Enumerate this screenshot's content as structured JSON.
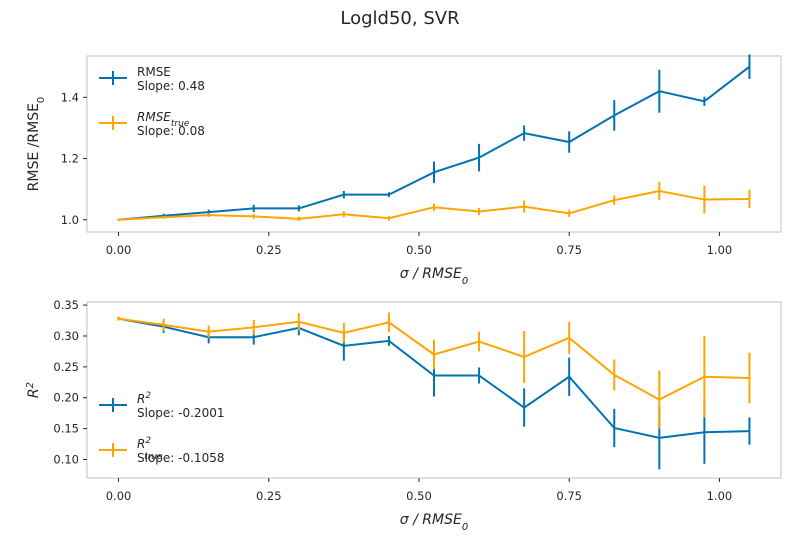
{
  "figure": {
    "suptitle": "Logld50, SVR"
  },
  "colors": {
    "blue": "#0173b2",
    "orange": "#ffa400",
    "frame": "#cccccc",
    "text": "#262626"
  },
  "chart_data": [
    {
      "type": "line",
      "title": "",
      "xlabel": "σ / RMSE0",
      "ylabel": "RMSE /RMSE0",
      "xlim": [
        -0.0525,
        1.1025
      ],
      "ylim": [
        0.96,
        1.535
      ],
      "xticks": [
        0.0,
        0.25,
        0.5,
        0.75,
        1.0
      ],
      "xtick_labels": [
        "0.00",
        "0.25",
        "0.50",
        "0.75",
        "1.00"
      ],
      "yticks": [
        1.0,
        1.2,
        1.4
      ],
      "ytick_labels": [
        "1.0",
        "1.2",
        "1.4"
      ],
      "grid": false,
      "legend_position": "upper-left",
      "x": [
        0.0,
        0.075,
        0.15,
        0.225,
        0.3,
        0.375,
        0.45,
        0.525,
        0.6,
        0.675,
        0.75,
        0.825,
        0.9,
        0.975,
        1.05
      ],
      "series": [
        {
          "name": "RMSE",
          "legend_sub": "",
          "slope_label": "Slope: 0.48",
          "color": "#0173b2",
          "values": [
            1.0,
            1.013,
            1.025,
            1.037,
            1.037,
            1.082,
            1.082,
            1.155,
            1.203,
            1.283,
            1.254,
            1.341,
            1.42,
            1.387,
            1.5
          ],
          "errors": [
            0.003,
            0.007,
            0.008,
            0.012,
            0.01,
            0.012,
            0.008,
            0.035,
            0.045,
            0.025,
            0.035,
            0.05,
            0.07,
            0.015,
            0.04
          ]
        },
        {
          "name": "RMSE",
          "legend_sub": "true",
          "slope_label": "Slope: 0.08",
          "color": "#ffa400",
          "values": [
            1.0,
            1.008,
            1.015,
            1.011,
            1.003,
            1.018,
            1.005,
            1.041,
            1.027,
            1.043,
            1.021,
            1.064,
            1.094,
            1.066,
            1.068
          ],
          "errors": [
            0.003,
            0.005,
            0.006,
            0.008,
            0.007,
            0.01,
            0.008,
            0.012,
            0.012,
            0.02,
            0.012,
            0.015,
            0.03,
            0.045,
            0.03
          ]
        }
      ]
    },
    {
      "type": "line",
      "title": "",
      "xlabel": "σ / RMSE0",
      "ylabel": "R2",
      "xlim": [
        -0.0525,
        1.1025
      ],
      "ylim": [
        0.07,
        0.355
      ],
      "xticks": [
        0.0,
        0.25,
        0.5,
        0.75,
        1.0
      ],
      "xtick_labels": [
        "0.00",
        "0.25",
        "0.50",
        "0.75",
        "1.00"
      ],
      "yticks": [
        0.1,
        0.15,
        0.2,
        0.25,
        0.3,
        0.35
      ],
      "ytick_labels": [
        "0.10",
        "0.15",
        "0.20",
        "0.25",
        "0.30",
        "0.35"
      ],
      "grid": false,
      "legend_position": "lower-left",
      "x": [
        0.0,
        0.075,
        0.15,
        0.225,
        0.3,
        0.375,
        0.45,
        0.525,
        0.6,
        0.675,
        0.75,
        0.825,
        0.9,
        0.975,
        1.05
      ],
      "series": [
        {
          "name": "R",
          "legend_sub": "",
          "slope_label": "Slope: -0.2001",
          "color": "#0173b2",
          "values": [
            0.328,
            0.315,
            0.298,
            0.298,
            0.313,
            0.284,
            0.292,
            0.236,
            0.236,
            0.184,
            0.234,
            0.151,
            0.135,
            0.144,
            0.146
          ],
          "errors": [
            0.003,
            0.01,
            0.01,
            0.012,
            0.012,
            0.024,
            0.008,
            0.034,
            0.013,
            0.031,
            0.031,
            0.031,
            0.051,
            0.051,
            0.022
          ]
        },
        {
          "name": "R",
          "legend_sub": "true",
          "slope_label": "Slope: -0.1058",
          "color": "#ffa400",
          "values": [
            0.328,
            0.318,
            0.307,
            0.314,
            0.323,
            0.305,
            0.322,
            0.27,
            0.291,
            0.266,
            0.297,
            0.237,
            0.197,
            0.234,
            0.232
          ],
          "errors": [
            0.003,
            0.01,
            0.01,
            0.012,
            0.014,
            0.016,
            0.016,
            0.024,
            0.016,
            0.042,
            0.026,
            0.025,
            0.047,
            0.066,
            0.041
          ]
        }
      ]
    }
  ]
}
